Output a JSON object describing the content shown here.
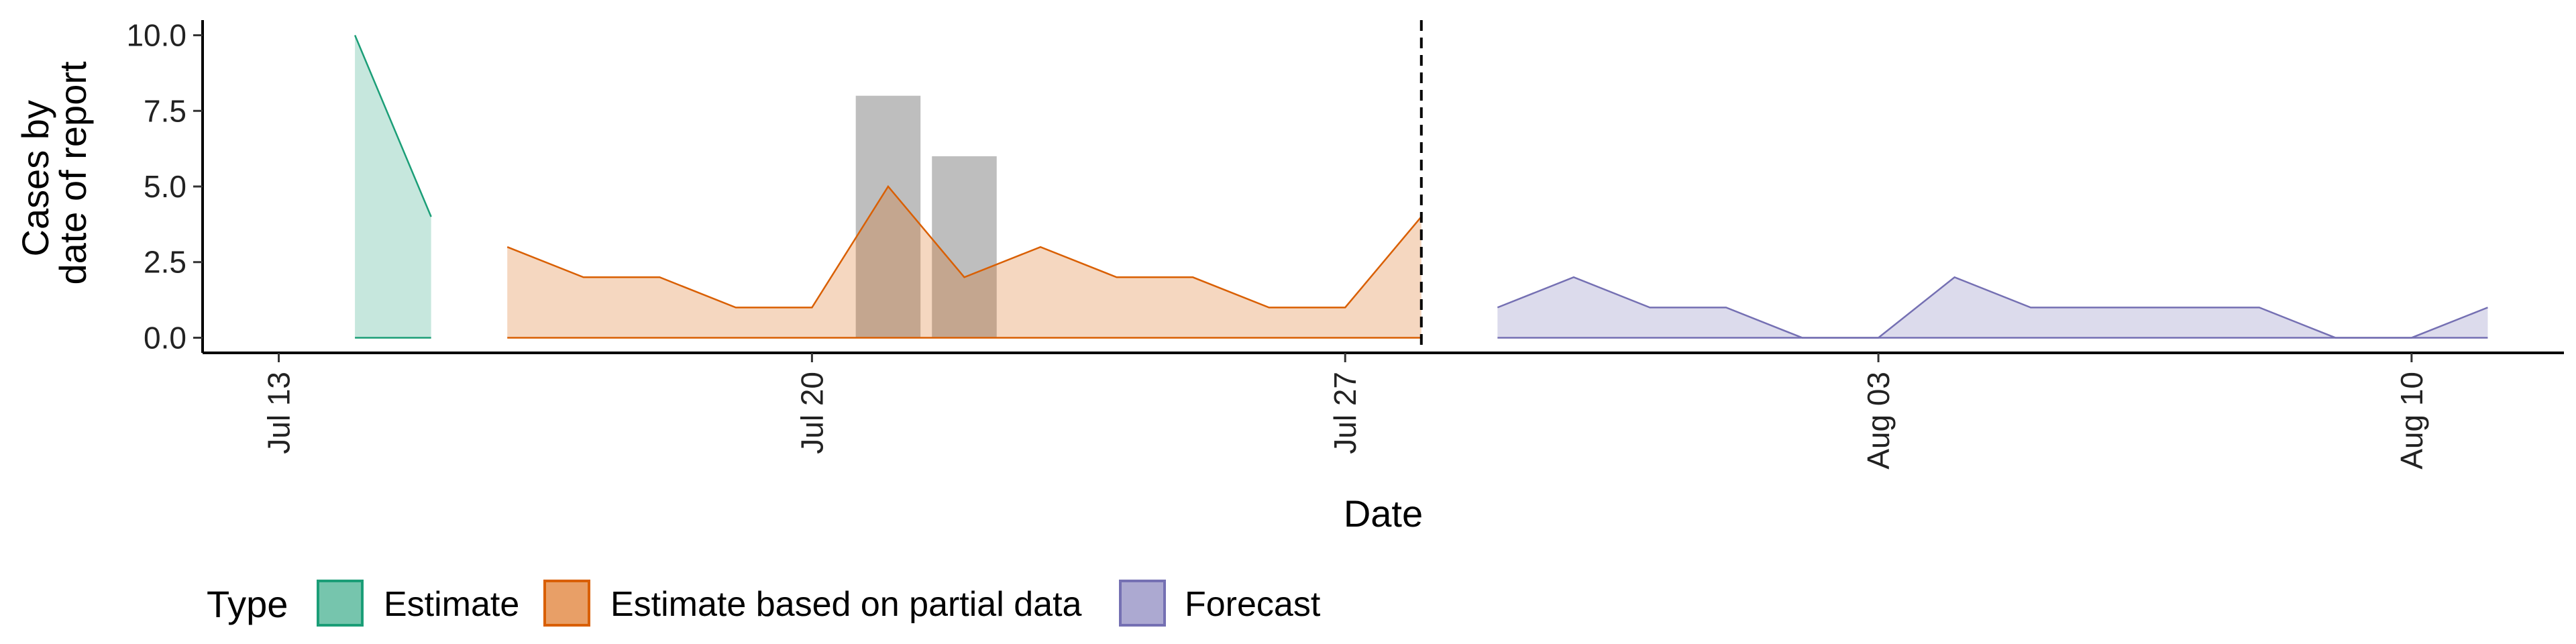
{
  "chart_data": {
    "type": "area",
    "xlabel": "Date",
    "ylabel": [
      "Cases by",
      "date of report"
    ],
    "ylim": [
      -0.5,
      10.5
    ],
    "xlim": [
      "2020-07-12",
      "2020-08-12"
    ],
    "y_ticks": [
      {
        "value": 0,
        "label": "0.0"
      },
      {
        "value": 2.5,
        "label": "2.5"
      },
      {
        "value": 5,
        "label": "5.0"
      },
      {
        "value": 7.5,
        "label": "7.5"
      },
      {
        "value": 10,
        "label": "10.0"
      }
    ],
    "x_ticks": [
      {
        "date": "2020-07-13",
        "label": "Jul 13"
      },
      {
        "date": "2020-07-20",
        "label": "Jul 20"
      },
      {
        "date": "2020-07-27",
        "label": "Jul 27"
      },
      {
        "date": "2020-08-03",
        "label": "Aug 03"
      },
      {
        "date": "2020-08-10",
        "label": "Aug 10"
      }
    ],
    "vline_date": "2020-07-28",
    "grid": false,
    "legend_position": "bottom-left",
    "bars": [
      {
        "date": "2020-07-21",
        "value": 8
      },
      {
        "date": "2020-07-22",
        "value": 6
      }
    ],
    "series": [
      {
        "name": "Estimate",
        "color": "#1B9E77",
        "fill": "#1B9E77",
        "points": [
          [
            "2020-07-14",
            10
          ],
          [
            "2020-07-15",
            4
          ]
        ]
      },
      {
        "name": "Estimate based on partial data",
        "color": "#D95F02",
        "fill": "#D95F02",
        "points": [
          [
            "2020-07-16",
            3
          ],
          [
            "2020-07-17",
            2
          ],
          [
            "2020-07-18",
            2
          ],
          [
            "2020-07-19",
            1
          ],
          [
            "2020-07-20",
            1
          ],
          [
            "2020-07-21",
            5
          ],
          [
            "2020-07-22",
            2
          ],
          [
            "2020-07-23",
            3
          ],
          [
            "2020-07-24",
            2
          ],
          [
            "2020-07-25",
            2
          ],
          [
            "2020-07-26",
            1
          ],
          [
            "2020-07-27",
            1
          ],
          [
            "2020-07-28",
            4
          ]
        ]
      },
      {
        "name": "Forecast",
        "color": "#7570B3",
        "fill": "#7570B3",
        "points": [
          [
            "2020-07-29",
            1
          ],
          [
            "2020-07-30",
            2
          ],
          [
            "2020-07-31",
            1
          ],
          [
            "2020-08-01",
            1
          ],
          [
            "2020-08-02",
            0
          ],
          [
            "2020-08-03",
            0
          ],
          [
            "2020-08-04",
            2
          ],
          [
            "2020-08-05",
            1
          ],
          [
            "2020-08-06",
            1
          ],
          [
            "2020-08-07",
            1
          ],
          [
            "2020-08-08",
            1
          ],
          [
            "2020-08-09",
            0
          ],
          [
            "2020-08-10",
            0
          ],
          [
            "2020-08-11",
            1
          ]
        ]
      }
    ],
    "legend": {
      "title": "Type",
      "items": [
        "Estimate",
        "Estimate based on partial data",
        "Forecast"
      ]
    }
  }
}
